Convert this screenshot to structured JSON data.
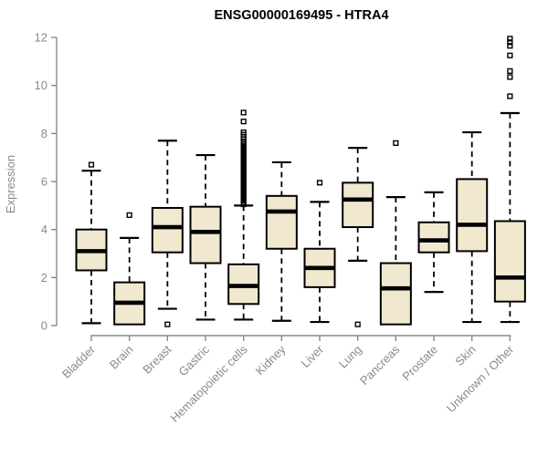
{
  "title": "ENSG00000169495 - HTRA4",
  "chart_data": {
    "type": "boxplot",
    "title": "ENSG00000169495 - HTRA4",
    "ylabel": "Expression",
    "xlabel": "",
    "ylim": [
      0,
      12
    ],
    "yticks": [
      0,
      2,
      4,
      6,
      8,
      10,
      12
    ],
    "grid": false,
    "legend": "none",
    "box_fill_color": "#F0E9D0",
    "box_stroke_color": "#000000",
    "axis_color": "#888888",
    "label_color": "#8a8a8a",
    "categories": [
      "Bladder",
      "Brain",
      "Breast",
      "Gastric",
      "Hematopoietic cells",
      "Kidney",
      "Liver",
      "Lung",
      "Pancreas",
      "Prostate",
      "Skin",
      "Unknown / Other"
    ],
    "series": [
      {
        "category": "Bladder",
        "whisker_low": 0.1,
        "q1": 2.3,
        "median": 3.1,
        "q3": 4.0,
        "whisker_high": 6.45,
        "outliers": [
          6.7
        ]
      },
      {
        "category": "Brain",
        "whisker_low": 0.05,
        "q1": 0.05,
        "median": 0.95,
        "q3": 1.8,
        "whisker_high": 3.65,
        "outliers": [
          4.6
        ]
      },
      {
        "category": "Breast",
        "whisker_low": 0.7,
        "q1": 3.05,
        "median": 4.1,
        "q3": 4.9,
        "whisker_high": 7.7,
        "outliers": [
          0.05
        ]
      },
      {
        "category": "Gastric",
        "whisker_low": 0.25,
        "q1": 2.6,
        "median": 3.9,
        "q3": 4.95,
        "whisker_high": 7.1,
        "outliers": []
      },
      {
        "category": "Hematopoietic cells",
        "whisker_low": 0.25,
        "q1": 0.9,
        "median": 1.65,
        "q3": 2.55,
        "whisker_high": 5.0,
        "outliers": [
          5.05,
          5.12,
          5.19,
          5.26,
          5.33,
          5.4,
          5.47,
          5.54,
          5.61,
          5.68,
          5.75,
          5.82,
          5.89,
          5.96,
          6.03,
          6.1,
          6.17,
          6.24,
          6.31,
          6.38,
          6.45,
          6.52,
          6.59,
          6.66,
          6.73,
          6.8,
          6.87,
          6.94,
          7.01,
          7.08,
          7.15,
          7.22,
          7.29,
          7.36,
          7.43,
          7.5,
          7.57,
          7.64,
          7.75,
          7.85,
          7.95,
          8.05,
          8.5,
          8.87
        ]
      },
      {
        "category": "Kidney",
        "whisker_low": 0.2,
        "q1": 3.2,
        "median": 4.75,
        "q3": 5.4,
        "whisker_high": 6.8,
        "outliers": []
      },
      {
        "category": "Liver",
        "whisker_low": 0.15,
        "q1": 1.6,
        "median": 2.4,
        "q3": 3.2,
        "whisker_high": 5.15,
        "outliers": [
          5.95
        ]
      },
      {
        "category": "Lung",
        "whisker_low": 2.7,
        "q1": 4.1,
        "median": 5.25,
        "q3": 5.95,
        "whisker_high": 7.4,
        "outliers": [
          0.05
        ]
      },
      {
        "category": "Pancreas",
        "whisker_low": 0.05,
        "q1": 0.05,
        "median": 1.55,
        "q3": 2.6,
        "whisker_high": 5.35,
        "outliers": [
          7.6
        ]
      },
      {
        "category": "Prostate",
        "whisker_low": 1.4,
        "q1": 3.05,
        "median": 3.55,
        "q3": 4.3,
        "whisker_high": 5.55,
        "outliers": []
      },
      {
        "category": "Skin",
        "whisker_low": 0.15,
        "q1": 3.1,
        "median": 4.2,
        "q3": 6.1,
        "whisker_high": 8.05,
        "outliers": []
      },
      {
        "category": "Unknown / Other",
        "whisker_low": 0.15,
        "q1": 1.0,
        "median": 2.0,
        "q3": 4.35,
        "whisker_high": 8.85,
        "outliers": [
          9.55,
          10.35,
          10.6,
          11.25,
          11.65,
          11.8,
          11.95
        ]
      }
    ]
  }
}
